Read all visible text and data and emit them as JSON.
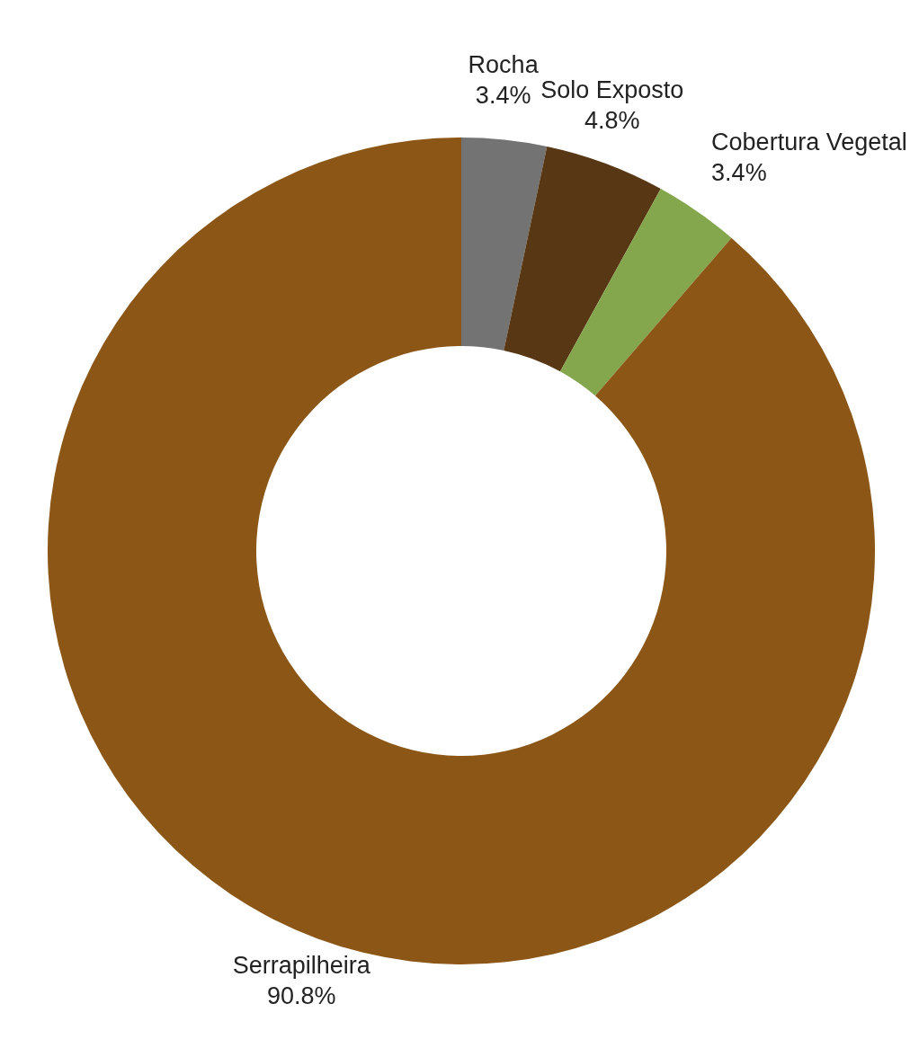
{
  "chart_data": {
    "type": "donut",
    "categories": [
      "Rocha",
      "Solo Exposto",
      "Cobertura Vegetal",
      "Serrapilheira"
    ],
    "values": [
      3.4,
      4.8,
      3.4,
      90.8
    ],
    "value_labels": [
      "3.4%",
      "4.8%",
      "3.4%",
      "90.8%"
    ],
    "colors": [
      "#737373",
      "#583714",
      "#84a64c",
      "#8b5616"
    ],
    "legend": false
  }
}
